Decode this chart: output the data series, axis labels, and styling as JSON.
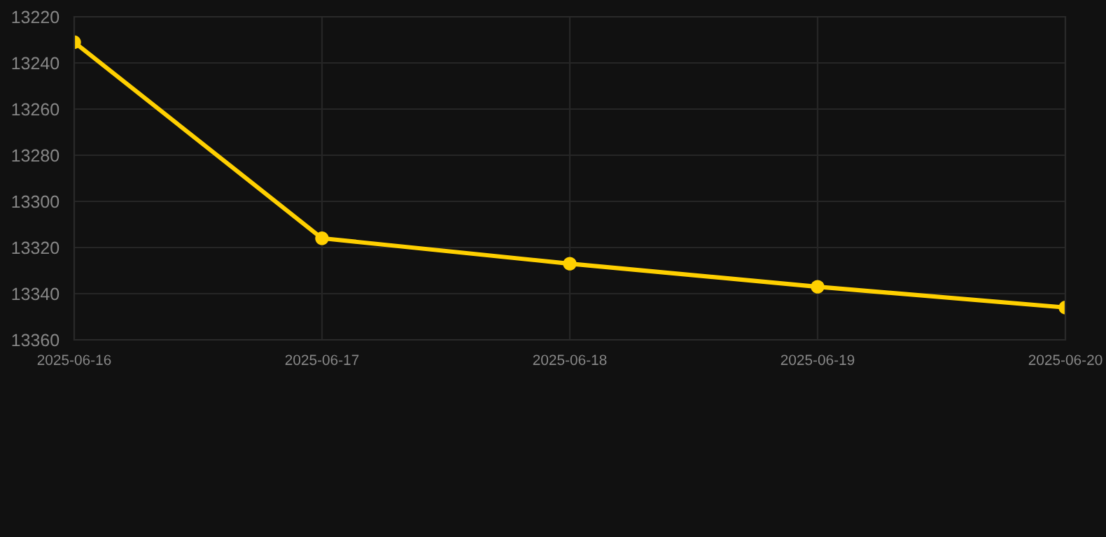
{
  "chart_data": {
    "type": "line",
    "x": [
      "2025-06-16",
      "2025-06-17",
      "2025-06-18",
      "2025-06-19",
      "2025-06-20"
    ],
    "series": [
      {
        "color": "#ffd000",
        "values": [
          13231,
          13316,
          13327,
          13337,
          13346
        ]
      }
    ],
    "xlim": [
      "2025-06-16",
      "2025-06-20"
    ],
    "xticks": [
      "2025-06-16",
      "2025-06-17",
      "2025-06-18",
      "2025-06-19",
      "2025-06-20"
    ],
    "ylim": [
      13360,
      13220
    ],
    "yticks": [
      13220,
      13240,
      13260,
      13280,
      13300,
      13320,
      13340,
      13360
    ],
    "grid": true,
    "marker": "circle",
    "line_style": "solid"
  }
}
